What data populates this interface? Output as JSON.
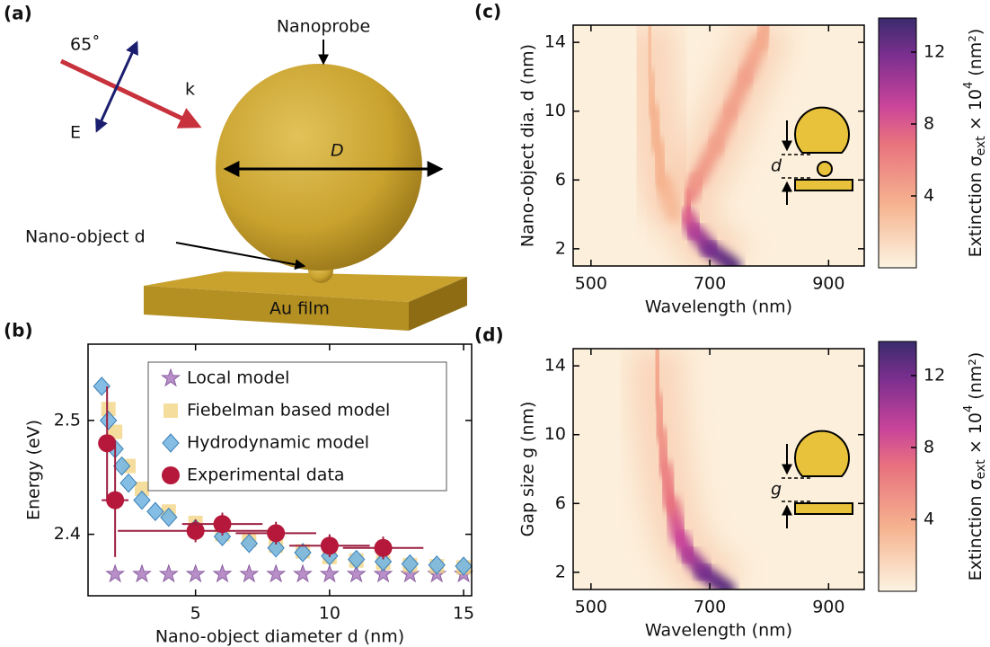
{
  "diagram": {
    "label": "(a)",
    "angle": "65˚",
    "k": "k",
    "E": "E",
    "probe": "Nanoprobe",
    "D": "D",
    "object": "Nano-object d",
    "film": "Au film"
  },
  "chart_data": [
    {
      "type": "scatter",
      "label": "(b)",
      "xlabel": "Nano-object diameter d (nm)",
      "ylabel": "Energy (eV)",
      "xlim": [
        0.99,
        15.3
      ],
      "ylim": [
        2.346,
        2.567
      ],
      "xticks": [
        5,
        10,
        15
      ],
      "yticks": [
        2.4,
        2.5
      ],
      "legend": "upper right",
      "series": [
        {
          "name": "Local model",
          "marker": "star",
          "color": "#b88fc8",
          "x": [
            2,
            3,
            4,
            5,
            6,
            7,
            8,
            9,
            10,
            11,
            12,
            13,
            14,
            15
          ],
          "values": [
            2.365,
            2.365,
            2.365,
            2.365,
            2.365,
            2.365,
            2.365,
            2.365,
            2.365,
            2.365,
            2.365,
            2.365,
            2.365,
            2.365
          ]
        },
        {
          "name": "Fiebelman based model",
          "marker": "square",
          "color": "#f2d584",
          "x": [
            1.75,
            2,
            2.5,
            3,
            4,
            5,
            6,
            7,
            8,
            9,
            10,
            11,
            12,
            13,
            14,
            15
          ],
          "values": [
            2.51,
            2.49,
            2.46,
            2.44,
            2.42,
            2.41,
            2.4,
            2.395,
            2.39,
            2.385,
            2.38,
            2.377,
            2.375,
            2.373,
            2.372,
            2.371
          ]
        },
        {
          "name": "Hydrodynamic model",
          "marker": "diamond",
          "color": "#78b7e2",
          "x": [
            1.5,
            1.75,
            2,
            2.25,
            2.5,
            3,
            3.5,
            4,
            5,
            6,
            7,
            8,
            9,
            10,
            11,
            12,
            13,
            14,
            15
          ],
          "values": [
            2.53,
            2.5,
            2.475,
            2.46,
            2.445,
            2.43,
            2.42,
            2.415,
            2.405,
            2.398,
            2.392,
            2.388,
            2.384,
            2.381,
            2.378,
            2.376,
            2.374,
            2.373,
            2.372
          ]
        },
        {
          "name": "Experimental data",
          "marker": "circle",
          "color": "#b5183a",
          "x": [
            1.7,
            2,
            5,
            6,
            8,
            10,
            12
          ],
          "values": [
            2.48,
            2.43,
            2.403,
            2.409,
            2.401,
            2.39,
            2.388
          ],
          "errors_x": [
            0.3,
            0.5,
            2.9,
            1.5,
            1.5,
            1.5,
            1.5
          ],
          "errors_y": [
            0.05,
            0.05,
            0.01,
            0.01,
            0.01,
            0.01,
            0.01
          ]
        }
      ]
    },
    {
      "type": "heatmap",
      "label": "(c)",
      "xlabel": "Wavelength (nm)",
      "ylabel": "Nano-object dia. d (nm)",
      "xlim": [
        470,
        960
      ],
      "ylim": [
        1,
        15
      ],
      "xticks": [
        500,
        700,
        900
      ],
      "yticks": [
        2,
        6,
        10,
        14
      ],
      "clim": [
        0,
        13.9
      ],
      "cticks": [
        4,
        8,
        12
      ],
      "colorbar_label": [
        "Extinction σ",
        "ext",
        " × 10",
        "4",
        " (nm²)"
      ],
      "inset_label": "d",
      "ridges": [
        {
          "y": [
            1,
            2,
            3,
            4,
            5,
            6,
            8,
            10,
            12,
            14,
            15
          ],
          "x": [
            740,
            700,
            675,
            660,
            665,
            680,
            710,
            735,
            760,
            785,
            795
          ],
          "values": [
            13,
            12,
            10,
            8,
            6,
            5,
            4.5,
            4.5,
            4.5,
            4,
            4
          ]
        },
        {
          "y": [
            4,
            6,
            8,
            10,
            12,
            15
          ],
          "x": [
            640,
            620,
            612,
            605,
            600,
            598
          ],
          "values": [
            3,
            3.5,
            3.5,
            3.5,
            3,
            3
          ]
        }
      ]
    },
    {
      "type": "heatmap",
      "label": "(d)",
      "xlabel": "Wavelength (nm)",
      "ylabel": "Gap size g (nm)",
      "xlim": [
        470,
        960
      ],
      "ylim": [
        1,
        15
      ],
      "xticks": [
        500,
        700,
        900
      ],
      "yticks": [
        2,
        6,
        10,
        14
      ],
      "clim": [
        0,
        13.9
      ],
      "cticks": [
        4,
        8,
        12
      ],
      "colorbar_label": [
        "Extinction σ",
        "ext",
        " × 10",
        "4",
        " (nm²)"
      ],
      "inset_label": "g",
      "ridges": [
        {
          "y": [
            1,
            2,
            3,
            4,
            6,
            8,
            10,
            12,
            15
          ],
          "x": [
            730,
            690,
            665,
            650,
            635,
            625,
            618,
            613,
            610
          ],
          "values": [
            13,
            12,
            10,
            9,
            7,
            6,
            5,
            4.5,
            4
          ]
        }
      ]
    }
  ]
}
